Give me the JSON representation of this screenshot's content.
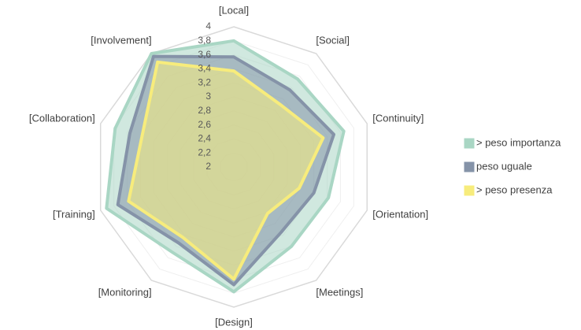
{
  "chart_data": {
    "type": "radar",
    "categories": [
      "[Local]",
      "[Social]",
      "[Continuity]",
      "[Orientation]",
      "[Meetings]",
      "[Design]",
      "[Monitoring]",
      "[Training]",
      "[Collaboration]",
      "[Involvement]"
    ],
    "series": [
      {
        "name": "> peso importanza",
        "color": "#a9d6c4",
        "values": [
          3.8,
          3.55,
          3.65,
          3.42,
          3.4,
          3.78,
          3.5,
          3.91,
          3.78,
          4.0
        ]
      },
      {
        "name": "peso uguale",
        "color": "#8593a8",
        "values": [
          3.57,
          3.36,
          3.5,
          3.2,
          3.15,
          3.68,
          3.34,
          3.74,
          3.56,
          3.95
        ]
      },
      {
        "name": "> peso presenza",
        "color": "#f7ec7c",
        "values": [
          3.37,
          3.11,
          3.34,
          2.98,
          2.82,
          3.6,
          3.24,
          3.58,
          3.38,
          3.85
        ]
      }
    ],
    "ylim": [
      2,
      4
    ],
    "yticks": [
      2,
      {
        "value": 2.2,
        "label": "2,2"
      },
      {
        "value": 2.4,
        "label": "2,4"
      },
      {
        "value": 2.6,
        "label": "2,6"
      },
      {
        "value": 2.8,
        "label": "2,8"
      },
      3,
      {
        "value": 3.2,
        "label": "3,2"
      },
      {
        "value": 3.4,
        "label": "3,4"
      },
      {
        "value": 3.6,
        "label": "3,6"
      },
      {
        "value": 3.8,
        "label": "3,8"
      },
      4
    ],
    "grid": true,
    "legend": "right"
  }
}
